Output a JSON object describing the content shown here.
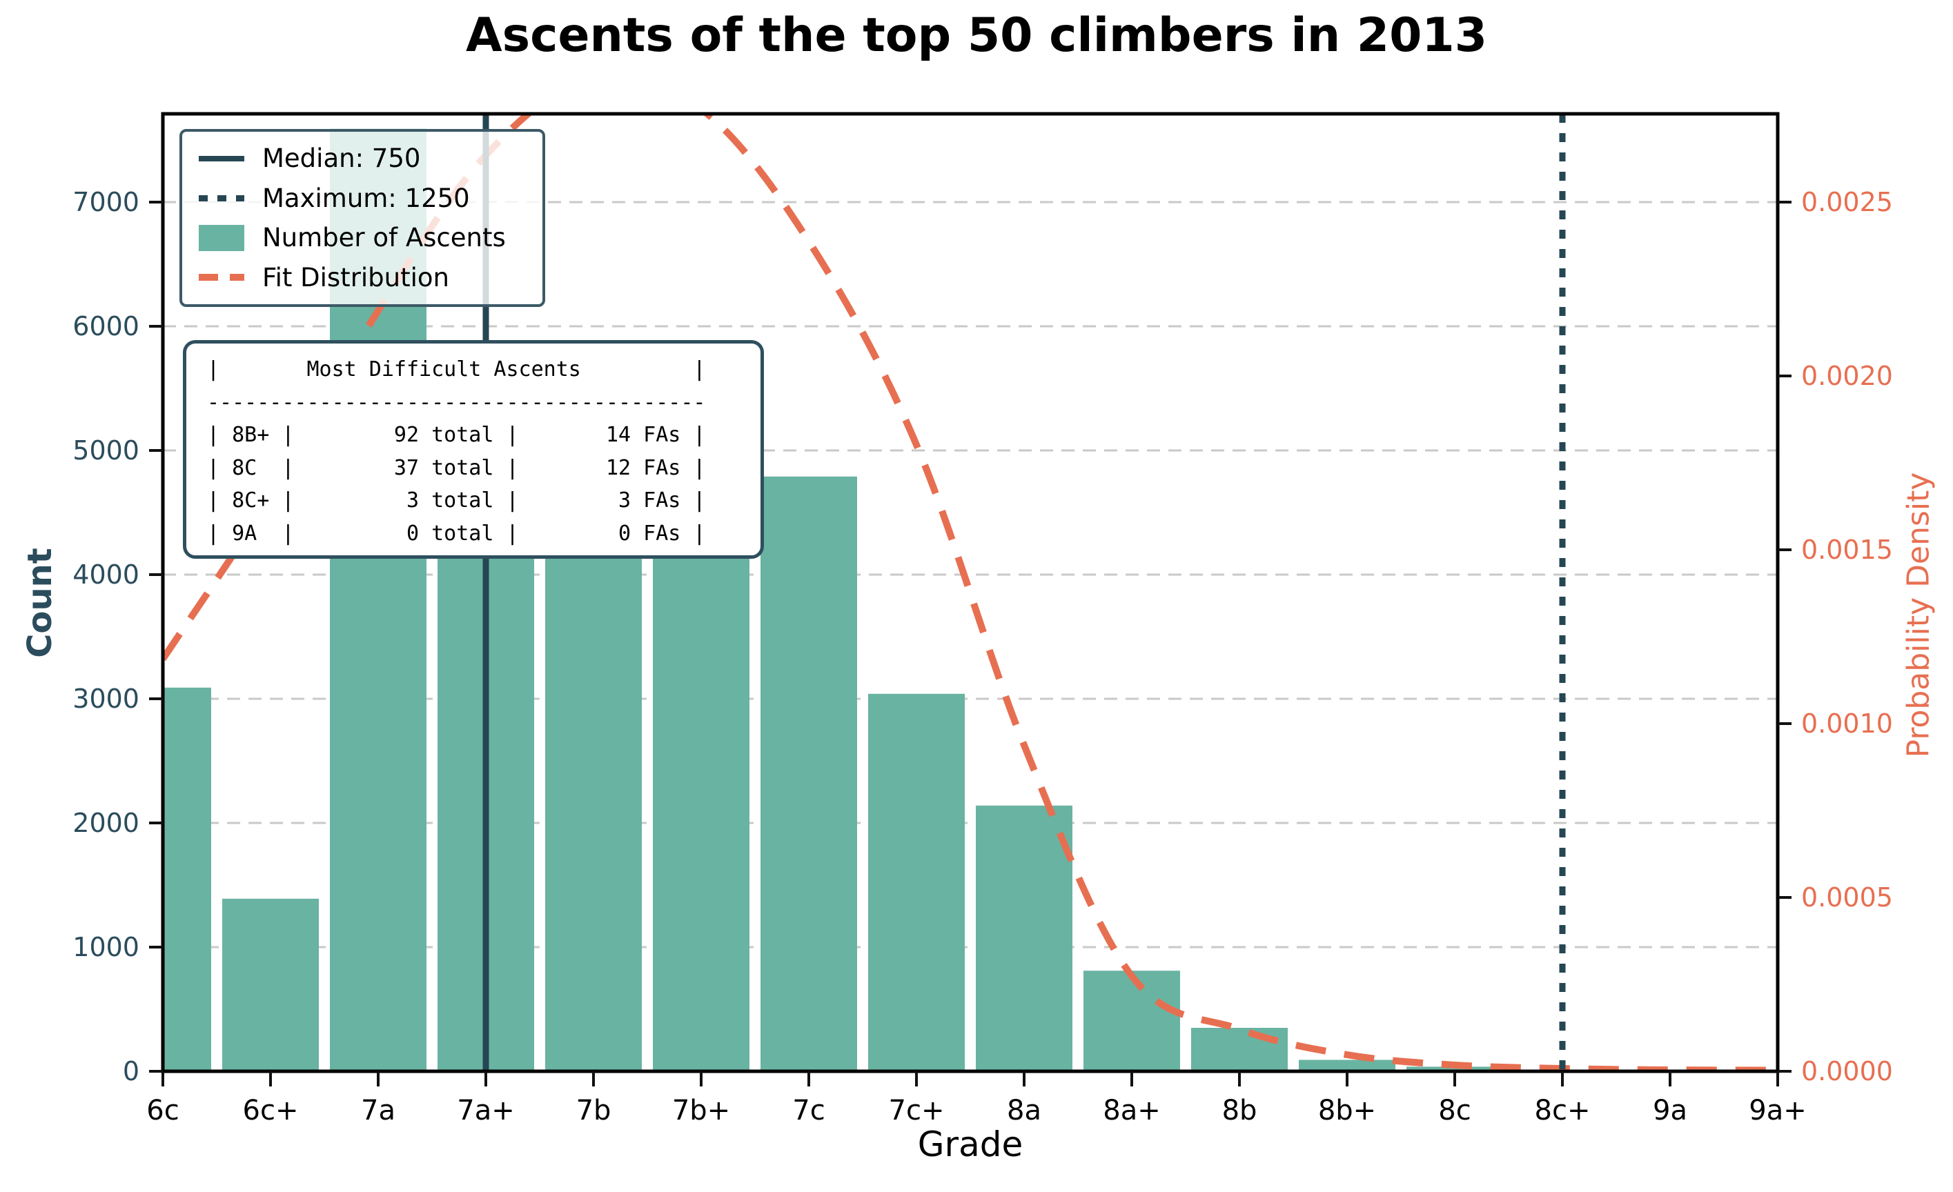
{
  "title": "Ascents of the top 50 climbers in 2013",
  "axes": {
    "left_label": "Count",
    "bottom_label": "Grade",
    "right_label": "Probability Density",
    "left_ticks": [
      "0",
      "1000",
      "2000",
      "3000",
      "4000",
      "5000",
      "6000",
      "7000"
    ],
    "right_ticks": [
      "0.0000",
      "0.0005",
      "0.0010",
      "0.0015",
      "0.0020",
      "0.0025"
    ]
  },
  "legend": {
    "items": [
      {
        "label": "Median: 750",
        "sample": "solid-navy-line"
      },
      {
        "label": "Maximum: 1250",
        "sample": "dotted-navy-line"
      },
      {
        "label": "Number of Ascents",
        "sample": "teal-bar-swatch"
      },
      {
        "label": "Fit Distribution",
        "sample": "dashed-orange-line"
      }
    ]
  },
  "stats_table": {
    "lines": [
      "|       Most Difficult Ascents         |",
      "----------------------------------------",
      "| 8B+ |        92 total |       14 FAs |",
      "| 8C  |        37 total |       12 FAs |",
      "| 8C+ |         3 total |        3 FAs |",
      "| 9A  |         0 total |        0 FAs |"
    ]
  },
  "chart_data": {
    "type": "bar",
    "subtype": "histogram-with-fit-line",
    "title": "Ascents of the top 50 climbers in 2013",
    "xlabel": "Grade",
    "ylabel_left": "Count",
    "ylabel_right": "Probability Density",
    "categories": [
      "6c",
      "6c+",
      "7a",
      "7a+",
      "7b",
      "7b+",
      "7c",
      "7c+",
      "8a",
      "8a+",
      "8b",
      "8b+",
      "8c",
      "8c+",
      "9a",
      "9a+"
    ],
    "series": [
      {
        "name": "Number of Ascents",
        "type": "bar",
        "axis": "left",
        "values": [
          3090,
          1390,
          7590,
          5600,
          5300,
          4950,
          4790,
          3040,
          2140,
          810,
          350,
          92,
          37,
          3,
          0,
          0
        ]
      },
      {
        "name": "Fit Distribution",
        "type": "line",
        "axis": "right",
        "values": [
          0.001186,
          0.001653,
          0.002188,
          0.002635,
          0.002859,
          0.002768,
          0.002387,
          0.001802,
          0.000938,
          0.000274,
          0.000121,
          4.76e-05,
          1.78e-05,
          7.9e-06,
          4e-06,
          3e-06
        ]
      }
    ],
    "marker_lines": [
      {
        "name": "Median",
        "label": "Median: 750",
        "value": 750,
        "at_category": "7a+",
        "category_index": 3,
        "style": "solid"
      },
      {
        "name": "Maximum",
        "label": "Maximum: 1250",
        "value": 1250,
        "at_category": "8c+",
        "category_index": 13,
        "style": "dotted"
      }
    ],
    "ylim_left": [
      0,
      7711
    ],
    "ylim_right": [
      0,
      0.002754
    ],
    "grid": true,
    "legend_position": "upper-left",
    "colors": {
      "bar": "#69b3a2",
      "fit_line": "#e76f51",
      "marker_lines": "#264653",
      "left_tick_text": "#2b4c5c",
      "right_tick_text": "#e76f51",
      "gridline": "#c9c9c9",
      "box_frame": "#2f4f5e",
      "spine": "#000000"
    }
  }
}
